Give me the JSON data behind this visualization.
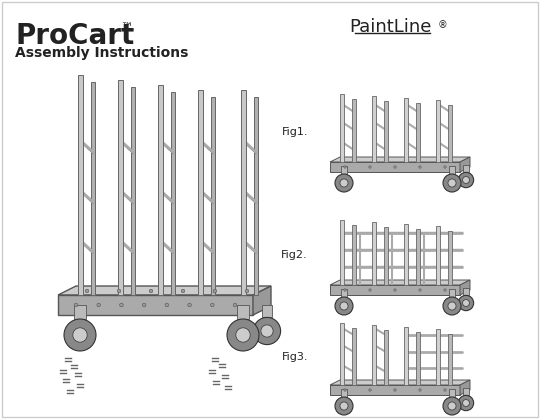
{
  "title_procart": "ProCart",
  "title_tm": "™",
  "title_sub": "Assembly Instructions",
  "brand": "PaintLine",
  "brand_reg": "®",
  "fig_labels": [
    "Fig1.",
    "Fig2.",
    "Fig3."
  ],
  "bg_color": "#ffffff",
  "dark_gray": "#222222",
  "mid_gray": "#888888",
  "light_gray": "#bbbbbb",
  "pole_light": "#d8d8d8",
  "pole_dark": "#aaaaaa",
  "platform_top": "#cccccc",
  "platform_front": "#aaaaaa",
  "platform_side": "#999999",
  "wheel_color": "#888888"
}
